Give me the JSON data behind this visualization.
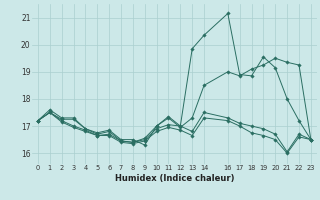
{
  "xlabel": "Humidex (Indice chaleur)",
  "bg_color": "#cce8e8",
  "grid_color": "#aacfcf",
  "line_color": "#2a6e62",
  "x_ticks": [
    0,
    1,
    2,
    3,
    4,
    5,
    6,
    7,
    8,
    9,
    10,
    11,
    12,
    13,
    14,
    16,
    17,
    18,
    19,
    20,
    21,
    22,
    23
  ],
  "ylim": [
    15.6,
    21.5
  ],
  "xlim": [
    -0.5,
    23.5
  ],
  "yticks": [
    16,
    17,
    18,
    19,
    20,
    21
  ],
  "series": [
    {
      "x": [
        0,
        1,
        2,
        3,
        4,
        5,
        6,
        7,
        8,
        9,
        10,
        11,
        12,
        13,
        14,
        16,
        17,
        18,
        19,
        20,
        21,
        22,
        23
      ],
      "y": [
        17.2,
        17.6,
        17.3,
        17.3,
        16.9,
        16.75,
        16.85,
        16.5,
        16.5,
        16.3,
        17.0,
        17.35,
        17.0,
        19.85,
        20.35,
        21.15,
        18.9,
        18.85,
        19.55,
        19.15,
        18.0,
        17.2,
        16.5
      ]
    },
    {
      "x": [
        0,
        1,
        2,
        3,
        4,
        5,
        6,
        7,
        8,
        9,
        10,
        11,
        12,
        13,
        14,
        16,
        17,
        18,
        19,
        20,
        21,
        22,
        23
      ],
      "y": [
        17.2,
        17.5,
        17.25,
        17.25,
        16.9,
        16.7,
        16.8,
        16.45,
        16.4,
        16.55,
        17.0,
        17.3,
        16.95,
        17.3,
        18.5,
        19.0,
        18.85,
        19.1,
        19.25,
        19.5,
        19.35,
        19.25,
        16.5
      ]
    },
    {
      "x": [
        0,
        1,
        2,
        3,
        4,
        5,
        6,
        7,
        8,
        9,
        10,
        11,
        12,
        13,
        14,
        16,
        17,
        18,
        19,
        20,
        21,
        22,
        23
      ],
      "y": [
        17.2,
        17.5,
        17.2,
        17.0,
        16.85,
        16.65,
        16.7,
        16.45,
        16.4,
        16.5,
        16.9,
        17.05,
        17.0,
        16.8,
        17.5,
        17.3,
        17.1,
        17.0,
        16.9,
        16.7,
        16.05,
        16.7,
        16.5
      ]
    },
    {
      "x": [
        0,
        1,
        2,
        3,
        4,
        5,
        6,
        7,
        8,
        9,
        10,
        11,
        12,
        13,
        14,
        16,
        17,
        18,
        19,
        20,
        21,
        22,
        23
      ],
      "y": [
        17.2,
        17.5,
        17.15,
        16.95,
        16.8,
        16.65,
        16.65,
        16.4,
        16.35,
        16.45,
        16.8,
        16.95,
        16.85,
        16.65,
        17.3,
        17.2,
        17.0,
        16.75,
        16.65,
        16.5,
        16.0,
        16.6,
        16.5
      ]
    }
  ]
}
